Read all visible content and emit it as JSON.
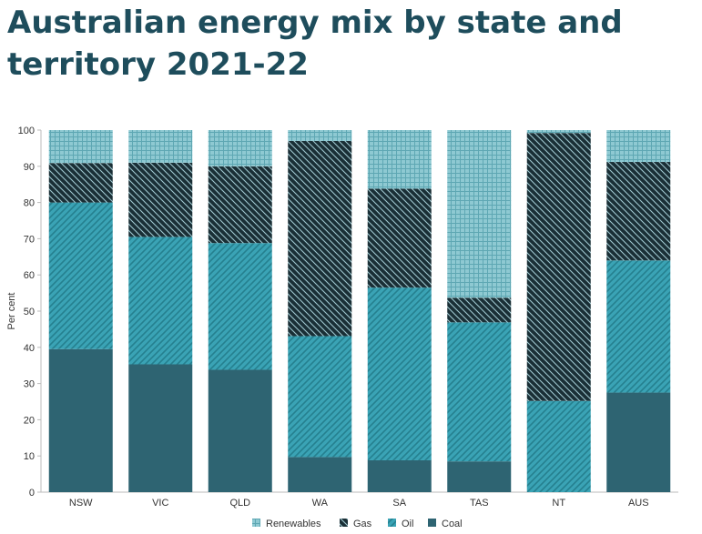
{
  "chart_data": {
    "type": "bar",
    "stacked": true,
    "title": "Australian energy mix by state and territory 2021-22",
    "ylabel": "Per cent",
    "xlabel": "",
    "ylim": [
      0,
      100
    ],
    "yticks": [
      0,
      10,
      20,
      30,
      40,
      50,
      60,
      70,
      80,
      90,
      100
    ],
    "grid": false,
    "legend_position": "bottom",
    "categories": [
      "NSW",
      "VIC",
      "QLD",
      "WA",
      "SA",
      "TAS",
      "NT",
      "AUS"
    ],
    "series": [
      {
        "name": "Coal",
        "values": [
          39.5,
          35.3,
          33.8,
          9.7,
          8.8,
          8.5,
          0,
          27.5
        ],
        "color": "#2e6472",
        "pattern": "solid"
      },
      {
        "name": "Oil",
        "values": [
          40.5,
          35.2,
          35.0,
          33.4,
          47.7,
          38.4,
          25.2,
          36.5
        ],
        "color": "#3aa3b5",
        "pattern": "hatch-forward"
      },
      {
        "name": "Gas",
        "values": [
          10.9,
          20.5,
          21.2,
          53.9,
          27.3,
          6.8,
          74.0,
          27.2
        ],
        "color": "#1a2f36",
        "pattern": "hatch-backward"
      },
      {
        "name": "Renewables",
        "values": [
          9.1,
          9.0,
          10.0,
          3.0,
          16.2,
          46.3,
          0.8,
          8.8
        ],
        "color": "#8ec9d2",
        "pattern": "grid"
      }
    ],
    "legend_order": [
      "Renewables",
      "Gas",
      "Oil",
      "Coal"
    ]
  }
}
